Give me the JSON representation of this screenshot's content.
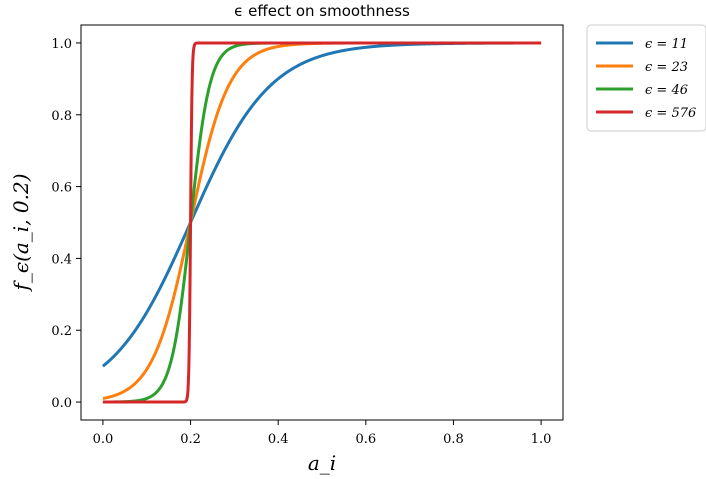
{
  "chart_data": {
    "type": "line",
    "title": "ϵ effect on smoothness",
    "xlabel": "a_i",
    "ylabel": "f_ϵ(a_i, 0.2)",
    "xlim": [
      -0.05,
      1.05
    ],
    "ylim": [
      -0.05,
      1.05
    ],
    "xticks": [
      0.0,
      0.2,
      0.4,
      0.6,
      0.8,
      1.0
    ],
    "xtick_labels": [
      "0.0",
      "0.2",
      "0.4",
      "0.6",
      "0.8",
      "1.0"
    ],
    "yticks": [
      0.0,
      0.2,
      0.4,
      0.6,
      0.8,
      1.0
    ],
    "ytick_labels": [
      "0.0",
      "0.2",
      "0.4",
      "0.6",
      "0.8",
      "1.0"
    ],
    "grid": false,
    "legend_position": "outside-top-right",
    "center": 0.2,
    "series": [
      {
        "name": "ϵ = 11",
        "epsilon": 11,
        "color": "#1f77b4"
      },
      {
        "name": "ϵ = 23",
        "epsilon": 23,
        "color": "#ff7f0e"
      },
      {
        "name": "ϵ = 46",
        "epsilon": 46,
        "color": "#2ca02c"
      },
      {
        "name": "ϵ = 576",
        "epsilon": 576,
        "color": "#d62728"
      }
    ]
  }
}
